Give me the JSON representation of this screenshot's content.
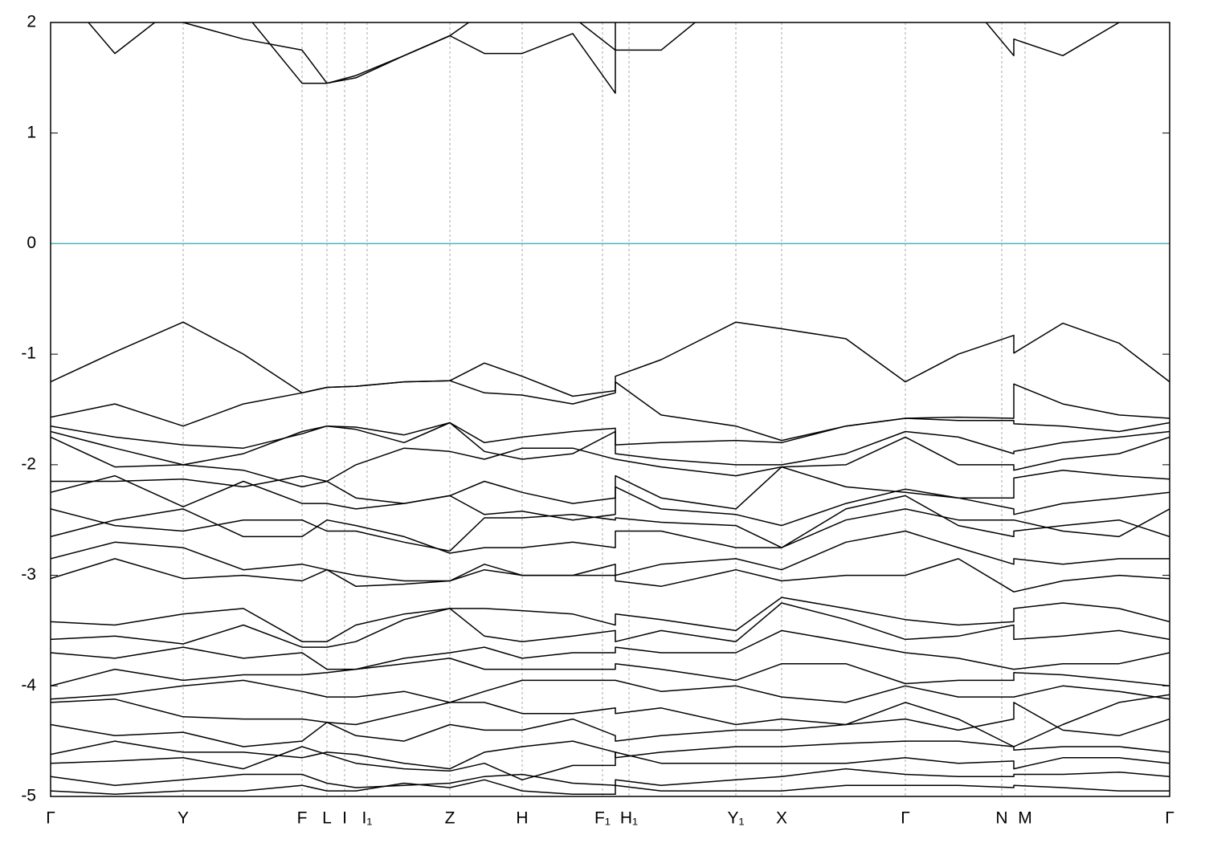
{
  "chart_data": {
    "type": "line",
    "x": [
      0,
      80,
      165,
      240,
      313,
      344,
      380,
      440,
      497,
      540,
      587,
      650,
      703,
      703,
      760,
      853,
      910,
      990,
      1064,
      1130,
      1199,
      1199,
      1260,
      1330,
      1393
    ],
    "xlim": [
      0,
      1393
    ],
    "xticks": [
      {
        "value": 0,
        "label": "Γ"
      },
      {
        "value": 165,
        "label": "Y"
      },
      {
        "value": 313,
        "label": "F"
      },
      {
        "value": 344,
        "label": "L"
      },
      {
        "value": 366,
        "label": "I"
      },
      {
        "value": 394,
        "label": "I₁"
      },
      {
        "value": 497,
        "label": "Z"
      },
      {
        "value": 587,
        "label": "H"
      },
      {
        "value": 687,
        "label": "F₁"
      },
      {
        "value": 720,
        "label": "H₁"
      },
      {
        "value": 853,
        "label": "Y₁"
      },
      {
        "value": 910,
        "label": "X"
      },
      {
        "value": 1064,
        "label": "Γ"
      },
      {
        "value": 1184,
        "label": "N"
      },
      {
        "value": 1213,
        "label": "M"
      },
      {
        "value": 1393,
        "label": "Γ"
      }
    ],
    "ylim": [
      -5,
      2
    ],
    "yticks": [
      -5,
      -4,
      -3,
      -2,
      -1,
      0,
      1,
      2
    ],
    "grid": true,
    "hline": 0,
    "hline_color": "#4fb0c6",
    "series": [
      {
        "color": "#000000",
        "values": [
          2.4,
          1.72,
          2.2,
          2.1,
          1.45,
          1.45,
          1.5,
          1.7,
          1.88,
          1.72,
          1.72,
          1.9,
          1.36,
          1.75,
          1.75,
          2.3,
          2.5,
          2.6,
          2.5,
          2.3,
          1.7,
          1.85,
          1.7,
          2.0,
          2.4
        ]
      },
      {
        "color": "#000000",
        "values": [
          2.5,
          2.3,
          2.0,
          1.85,
          1.75,
          1.45,
          1.52,
          1.7,
          1.88,
          2.1,
          2.3,
          2.05,
          1.75,
          2.2,
          2.3,
          2.5,
          2.6,
          2.6,
          2.5,
          2.4,
          2.2,
          2.2,
          2.2,
          2.3,
          2.5
        ]
      },
      {
        "color": "#000000",
        "values": [
          -1.25,
          -0.98,
          -0.71,
          -1.0,
          -1.35,
          -1.3,
          -1.29,
          -1.25,
          -1.24,
          -1.08,
          -1.2,
          -1.38,
          -1.33,
          -1.2,
          -1.05,
          -0.71,
          -0.77,
          -0.86,
          -1.25,
          -1.0,
          -0.83,
          -0.99,
          -0.72,
          -0.9,
          -1.25
        ]
      },
      {
        "color": "#000000",
        "values": [
          -1.57,
          -1.45,
          -1.65,
          -1.45,
          -1.35,
          -1.3,
          -1.29,
          -1.25,
          -1.24,
          -1.35,
          -1.37,
          -1.45,
          -1.35,
          -1.25,
          -1.55,
          -1.65,
          -1.78,
          -1.65,
          -1.58,
          -1.57,
          -1.58,
          -1.27,
          -1.45,
          -1.55,
          -1.58
        ]
      },
      {
        "color": "#000000",
        "values": [
          -1.65,
          -1.75,
          -1.82,
          -1.85,
          -1.72,
          -1.65,
          -1.66,
          -1.73,
          -1.62,
          -1.8,
          -1.75,
          -1.7,
          -1.67,
          -1.82,
          -1.8,
          -1.78,
          -1.8,
          -1.65,
          -1.58,
          -1.6,
          -1.6,
          -1.63,
          -1.65,
          -1.7,
          -1.62
        ]
      },
      {
        "color": "#000000",
        "values": [
          -1.7,
          -1.85,
          -2.0,
          -1.9,
          -1.7,
          -1.65,
          -1.68,
          -1.8,
          -1.62,
          -1.88,
          -1.95,
          -1.9,
          -1.7,
          -1.9,
          -1.95,
          -2.0,
          -2.0,
          -1.9,
          -1.7,
          -1.75,
          -1.9,
          -1.88,
          -1.8,
          -1.75,
          -1.7
        ]
      },
      {
        "color": "#000000",
        "values": [
          -1.75,
          -2.02,
          -2.0,
          -2.05,
          -2.2,
          -2.15,
          -2.0,
          -1.85,
          -1.88,
          -1.95,
          -1.85,
          -1.85,
          -1.95,
          -1.95,
          -2.02,
          -2.1,
          -2.02,
          -2.0,
          -1.75,
          -2.0,
          -2.0,
          -2.05,
          -1.95,
          -1.9,
          -1.75
        ]
      },
      {
        "color": "#000000",
        "values": [
          -2.15,
          -2.15,
          -2.13,
          -2.2,
          -2.1,
          -2.15,
          -2.3,
          -2.35,
          -2.28,
          -2.15,
          -2.25,
          -2.35,
          -2.3,
          -2.1,
          -2.3,
          -2.4,
          -2.02,
          -2.2,
          -2.25,
          -2.3,
          -2.3,
          -2.12,
          -2.05,
          -2.1,
          -2.13
        ]
      },
      {
        "color": "#000000",
        "values": [
          -2.25,
          -2.1,
          -2.38,
          -2.15,
          -2.35,
          -2.35,
          -2.4,
          -2.35,
          -2.28,
          -2.45,
          -2.42,
          -2.5,
          -2.45,
          -2.2,
          -2.4,
          -2.45,
          -2.55,
          -2.35,
          -2.22,
          -2.3,
          -2.4,
          -2.45,
          -2.35,
          -2.3,
          -2.25
        ]
      },
      {
        "color": "#000000",
        "values": [
          -2.4,
          -2.55,
          -2.6,
          -2.5,
          -2.5,
          -2.6,
          -2.6,
          -2.7,
          -2.78,
          -2.48,
          -2.48,
          -2.45,
          -2.5,
          -2.48,
          -2.52,
          -2.55,
          -2.75,
          -2.5,
          -2.4,
          -2.5,
          -2.5,
          -2.5,
          -2.6,
          -2.65,
          -2.4
        ]
      },
      {
        "color": "#000000",
        "values": [
          -2.65,
          -2.5,
          -2.4,
          -2.65,
          -2.65,
          -2.5,
          -2.55,
          -2.65,
          -2.8,
          -2.75,
          -2.75,
          -2.7,
          -2.75,
          -2.6,
          -2.6,
          -2.75,
          -2.75,
          -2.4,
          -2.28,
          -2.55,
          -2.65,
          -2.6,
          -2.55,
          -2.5,
          -2.65
        ]
      },
      {
        "color": "#000000",
        "values": [
          -2.85,
          -2.7,
          -2.75,
          -2.95,
          -2.9,
          -2.95,
          -3.0,
          -3.05,
          -3.05,
          -2.95,
          -3.0,
          -3.0,
          -2.9,
          -3.0,
          -2.9,
          -2.85,
          -2.95,
          -2.7,
          -2.6,
          -2.75,
          -2.9,
          -2.85,
          -2.9,
          -2.85,
          -2.85
        ]
      },
      {
        "color": "#000000",
        "values": [
          -3.03,
          -2.85,
          -3.03,
          -3.0,
          -3.05,
          -2.95,
          -3.1,
          -3.08,
          -3.05,
          -2.9,
          -3.0,
          -3.0,
          -3.0,
          -3.05,
          -3.1,
          -2.95,
          -3.05,
          -3.0,
          -3.0,
          -2.85,
          -3.15,
          -3.15,
          -3.05,
          -3.0,
          -3.03
        ]
      },
      {
        "color": "#000000",
        "values": [
          -3.42,
          -3.45,
          -3.35,
          -3.3,
          -3.6,
          -3.6,
          -3.45,
          -3.35,
          -3.3,
          -3.3,
          -3.32,
          -3.35,
          -3.45,
          -3.35,
          -3.4,
          -3.5,
          -3.2,
          -3.3,
          -3.4,
          -3.45,
          -3.42,
          -3.3,
          -3.25,
          -3.3,
          -3.42
        ]
      },
      {
        "color": "#000000",
        "values": [
          -3.58,
          -3.55,
          -3.62,
          -3.45,
          -3.65,
          -3.65,
          -3.6,
          -3.4,
          -3.3,
          -3.55,
          -3.6,
          -3.55,
          -3.5,
          -3.6,
          -3.5,
          -3.6,
          -3.25,
          -3.4,
          -3.58,
          -3.55,
          -3.45,
          -3.58,
          -3.55,
          -3.5,
          -3.58
        ]
      },
      {
        "color": "#000000",
        "values": [
          -3.7,
          -3.75,
          -3.65,
          -3.75,
          -3.7,
          -3.85,
          -3.85,
          -3.75,
          -3.7,
          -3.65,
          -3.75,
          -3.7,
          -3.7,
          -3.65,
          -3.7,
          -3.7,
          -3.5,
          -3.6,
          -3.7,
          -3.75,
          -3.85,
          -3.85,
          -3.8,
          -3.8,
          -3.7
        ]
      },
      {
        "color": "#000000",
        "values": [
          -4.0,
          -3.85,
          -3.95,
          -3.9,
          -3.9,
          -3.88,
          -3.85,
          -3.8,
          -3.75,
          -3.85,
          -3.85,
          -3.85,
          -3.85,
          -3.8,
          -3.85,
          -3.95,
          -3.8,
          -3.8,
          -3.98,
          -3.95,
          -3.95,
          -3.88,
          -3.9,
          -3.95,
          -4.0
        ]
      },
      {
        "color": "#000000",
        "values": [
          -4.12,
          -4.08,
          -4.0,
          -3.95,
          -4.05,
          -4.1,
          -4.1,
          -4.05,
          -4.15,
          -4.05,
          -3.95,
          -3.95,
          -3.95,
          -3.95,
          -4.05,
          -4.0,
          -4.1,
          -4.15,
          -4.0,
          -4.1,
          -4.1,
          -4.1,
          -4.0,
          -4.05,
          -4.12
        ]
      },
      {
        "color": "#000000",
        "values": [
          -4.15,
          -4.12,
          -4.28,
          -4.3,
          -4.3,
          -4.33,
          -4.35,
          -4.25,
          -4.15,
          -4.15,
          -4.25,
          -4.25,
          -4.2,
          -4.25,
          -4.2,
          -4.35,
          -4.3,
          -4.35,
          -4.15,
          -4.3,
          -4.55,
          -4.55,
          -4.35,
          -4.15,
          -4.08
        ]
      },
      {
        "color": "#000000",
        "values": [
          -4.35,
          -4.45,
          -4.42,
          -4.55,
          -4.5,
          -4.33,
          -4.45,
          -4.5,
          -4.35,
          -4.4,
          -4.4,
          -4.3,
          -4.45,
          -4.5,
          -4.45,
          -4.4,
          -4.4,
          -4.35,
          -4.3,
          -4.4,
          -4.3,
          -4.15,
          -4.4,
          -4.45,
          -4.3
        ]
      },
      {
        "color": "#000000",
        "values": [
          -4.62,
          -4.5,
          -4.6,
          -4.6,
          -4.65,
          -4.6,
          -4.62,
          -4.7,
          -4.75,
          -4.6,
          -4.55,
          -4.5,
          -4.6,
          -4.65,
          -4.6,
          -4.55,
          -4.55,
          -4.52,
          -4.5,
          -4.5,
          -4.55,
          -4.58,
          -4.55,
          -4.55,
          -4.6
        ]
      },
      {
        "color": "#000000",
        "values": [
          -4.7,
          -4.68,
          -4.65,
          -4.75,
          -4.55,
          -4.62,
          -4.7,
          -4.75,
          -4.77,
          -4.7,
          -4.85,
          -4.72,
          -4.72,
          -4.6,
          -4.7,
          -4.7,
          -4.7,
          -4.7,
          -4.65,
          -4.7,
          -4.68,
          -4.75,
          -4.65,
          -4.65,
          -4.7
        ]
      },
      {
        "color": "#000000",
        "values": [
          -4.82,
          -4.9,
          -4.85,
          -4.8,
          -4.8,
          -4.88,
          -4.92,
          -4.9,
          -4.88,
          -4.82,
          -4.8,
          -4.88,
          -4.9,
          -4.85,
          -4.9,
          -4.85,
          -4.82,
          -4.75,
          -4.8,
          -4.82,
          -4.82,
          -4.8,
          -4.8,
          -4.78,
          -4.82
        ]
      },
      {
        "color": "#000000",
        "values": [
          -4.95,
          -4.98,
          -4.95,
          -4.95,
          -4.9,
          -4.95,
          -4.95,
          -4.88,
          -4.92,
          -4.85,
          -4.95,
          -4.98,
          -4.98,
          -4.9,
          -4.95,
          -4.95,
          -4.95,
          -4.9,
          -4.9,
          -4.9,
          -4.92,
          -4.9,
          -4.92,
          -4.95,
          -4.95
        ]
      }
    ]
  }
}
